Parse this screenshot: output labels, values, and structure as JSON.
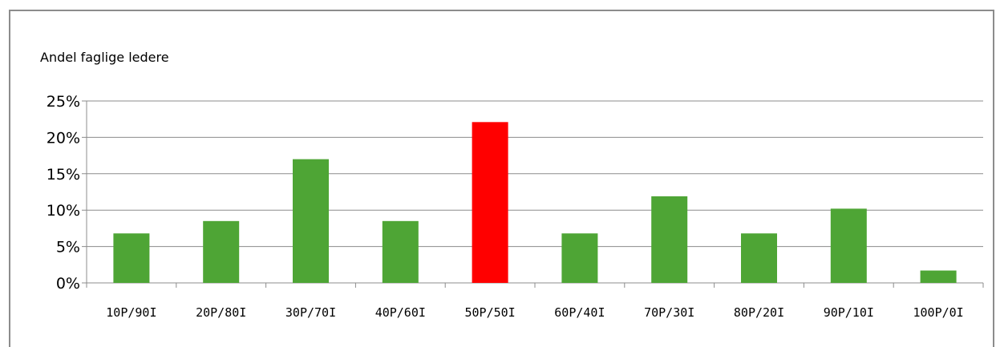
{
  "chart_data": {
    "type": "bar",
    "title": "",
    "ylabel": "Andel faglige ledere",
    "xlabel": "",
    "categories": [
      "10P/90I",
      "20P/80I",
      "30P/70I",
      "40P/60I",
      "50P/50I",
      "60P/40I",
      "70P/30I",
      "80P/20I",
      "90P/10I",
      "100P/0I"
    ],
    "values": [
      6.8,
      8.5,
      17.0,
      8.5,
      22.1,
      6.8,
      11.9,
      6.8,
      10.2,
      1.7
    ],
    "ylim": [
      0,
      25
    ],
    "yticks": [
      "0%",
      "5%",
      "10%",
      "15%",
      "20%",
      "25%"
    ],
    "grid": true,
    "legend": "none",
    "colors": {
      "bar": "#4ea535",
      "highlight": "#ff0000",
      "grid": "#8c8c8c"
    },
    "highlight_index": 4
  }
}
